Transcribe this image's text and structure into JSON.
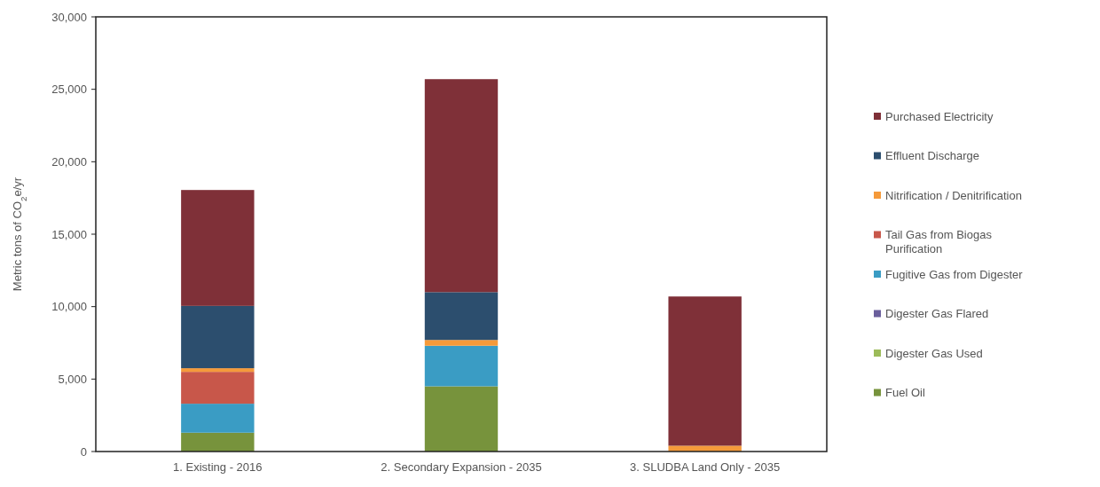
{
  "chart_data": {
    "type": "bar",
    "stacked": true,
    "ylabel": "Metric tons of CO$_{2}$e/yr",
    "categories": [
      "1. Existing - 2016",
      "2. Secondary Expansion - 2035",
      "3. SLUDBA Land Only - 2035"
    ],
    "ylim": [
      0,
      30000
    ],
    "yticks": [
      0,
      {
        "value": 5000,
        "label": "5,000"
      },
      {
        "value": 10000,
        "label": "10,000"
      },
      {
        "value": 15000,
        "label": "15,000"
      },
      {
        "value": 20000,
        "label": "20,000"
      },
      {
        "value": 25000,
        "label": "25,000"
      },
      {
        "value": 30000,
        "label": "30,000"
      }
    ],
    "legend": "right",
    "series": [
      {
        "name": "Fuel Oil",
        "color": "#77933c",
        "values": [
          1300,
          4500,
          0
        ]
      },
      {
        "name": "Digester Gas Used",
        "color": "#9cbb59",
        "values": [
          0,
          0,
          0
        ]
      },
      {
        "name": "Digester Gas Flared",
        "color": "#6a5f9c",
        "values": [
          0,
          0,
          0
        ]
      },
      {
        "name": "Fugitive Gas from Digester",
        "color": "#3a9cc4",
        "values": [
          2000,
          2800,
          0
        ]
      },
      {
        "name": "Tail Gas from Biogas Purification",
        "color": "#c8574a",
        "values": [
          2200,
          0,
          0
        ]
      },
      {
        "name": "Nitrification / Denitrification",
        "color": "#f59a3a",
        "values": [
          250,
          400,
          400
        ]
      },
      {
        "name": "Effluent Discharge",
        "color": "#2c4e6e",
        "values": [
          4300,
          3300,
          0
        ]
      },
      {
        "name": "Purchased Electricity",
        "color": "#7f3038",
        "values": [
          8000,
          14700,
          10300
        ]
      }
    ]
  }
}
